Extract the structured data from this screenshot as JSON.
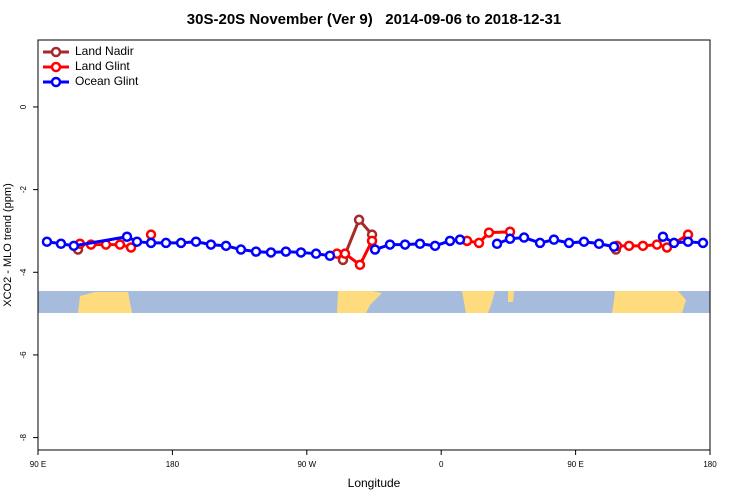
{
  "chart_data": {
    "type": "line",
    "title": "30S-20S November (Ver 9)   2014-09-06 to 2018-12-31",
    "x_label": "Longitude",
    "y_label": "XCO2 - MLO trend (ppm)",
    "xlim": [
      90,
      540
    ],
    "ylim": [
      -8.3,
      1.62
    ],
    "xticks": [
      {
        "value": 90,
        "label": "90 E"
      },
      {
        "value": 180,
        "label": "180"
      },
      {
        "value": 270,
        "label": "90 W"
      },
      {
        "value": 360,
        "label": "0"
      },
      {
        "value": 450,
        "label": "90 E"
      },
      {
        "value": 540,
        "label": "180"
      }
    ],
    "yticks": [
      0,
      -2,
      -4,
      -6,
      -8
    ],
    "legend": "top-left",
    "series": [
      {
        "name": "Land Nadir",
        "color": "#a52a2a",
        "x": [
          116.8,
          null,
          294.2,
          305,
          313.7,
          null,
          477
        ],
        "values": [
          -3.45,
          null,
          -3.7,
          -2.73,
          -3.09,
          null,
          -3.45
        ]
      },
      {
        "name": "Land Glint",
        "color": "#ff0000",
        "x": [
          118.1,
          125.5,
          135.5,
          144.9,
          152.3,
          null,
          165.7,
          null,
          290.2,
          295.6,
          305.6,
          313.7,
          null,
          377.3,
          385.3,
          392,
          406.1,
          null,
          477.7,
          485.8,
          495.1,
          504.5,
          511.2,
          525.3
        ],
        "values": [
          -3.31,
          -3.33,
          -3.33,
          -3.33,
          -3.4,
          null,
          -3.09,
          null,
          -3.55,
          -3.55,
          -3.82,
          -3.24,
          null,
          -3.24,
          -3.29,
          -3.04,
          -3.02,
          null,
          -3.36,
          -3.36,
          -3.36,
          -3.33,
          -3.4,
          -3.09
        ]
      },
      {
        "name": "Ocean Glint",
        "color": "#0000ff",
        "x": [
          96,
          105.4,
          114,
          149.6,
          156.3,
          165.7,
          175.7,
          185.8,
          195.8,
          205.8,
          215.9,
          225.9,
          236,
          246,
          256,
          266.1,
          276.2,
          285.5,
          null,
          315.7,
          325.7,
          335.8,
          345.8,
          355.9,
          365.9,
          372.6,
          null,
          397.4,
          406.1,
          415.5,
          426.2,
          435.5,
          445.6,
          455.6,
          465.7,
          475.7,
          null,
          508.5,
          515.9,
          525.3,
          535.3
        ],
        "values": [
          -3.26,
          -3.31,
          -3.36,
          -3.14,
          -3.26,
          -3.29,
          -3.29,
          -3.29,
          -3.26,
          -3.33,
          -3.36,
          -3.45,
          -3.5,
          -3.52,
          -3.5,
          -3.52,
          -3.55,
          -3.6,
          null,
          -3.45,
          -3.33,
          -3.33,
          -3.31,
          -3.36,
          -3.24,
          -3.21,
          null,
          -3.31,
          -3.19,
          -3.16,
          -3.29,
          -3.21,
          -3.29,
          -3.26,
          -3.31,
          -3.38,
          null,
          -3.14,
          -3.29,
          -3.26,
          -3.29
        ]
      }
    ]
  }
}
